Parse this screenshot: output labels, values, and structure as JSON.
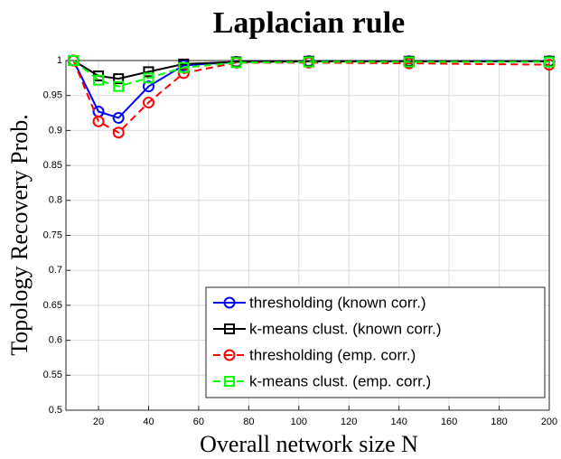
{
  "chart_data": {
    "type": "line",
    "title": "Laplacian rule",
    "xlabel": "Overall network size N",
    "ylabel": "Topology Recovery Prob.",
    "x": [
      10,
      20,
      28,
      40,
      54,
      75,
      104,
      144,
      200
    ],
    "series": [
      {
        "name": "thresholding (known corr.)",
        "color": "#0000ff",
        "marker": "circle",
        "dashed": false,
        "values": [
          1,
          0.927,
          0.918,
          0.963,
          0.993,
          0.998,
          0.999,
          0.999,
          0.999
        ]
      },
      {
        "name": "k-means clust. (known corr.)",
        "color": "#000000",
        "marker": "square",
        "dashed": false,
        "values": [
          1,
          0.978,
          0.974,
          0.984,
          0.995,
          0.998,
          0.999,
          0.999,
          0.999
        ]
      },
      {
        "name": "thresholding (emp. corr.)",
        "color": "#ff0000",
        "marker": "circle",
        "dashed": true,
        "values": [
          1,
          0.913,
          0.897,
          0.94,
          0.982,
          0.997,
          0.997,
          0.996,
          0.994
        ]
      },
      {
        "name": "k-means clust. (emp. corr.)",
        "color": "#00ff00",
        "marker": "square",
        "dashed": true,
        "values": [
          1,
          0.972,
          0.963,
          0.975,
          0.99,
          0.997,
          0.998,
          0.998,
          0.998
        ]
      }
    ],
    "xlim": [
      7,
      200
    ],
    "xticks": [
      20,
      40,
      60,
      80,
      100,
      120,
      140,
      160,
      180,
      200
    ],
    "ylim": [
      0.5,
      1
    ],
    "yticks": [
      0.5,
      0.55,
      0.6,
      0.65,
      0.7,
      0.75,
      0.8,
      0.85,
      0.9,
      0.95,
      1
    ],
    "grid": true,
    "legend": "lower right"
  }
}
